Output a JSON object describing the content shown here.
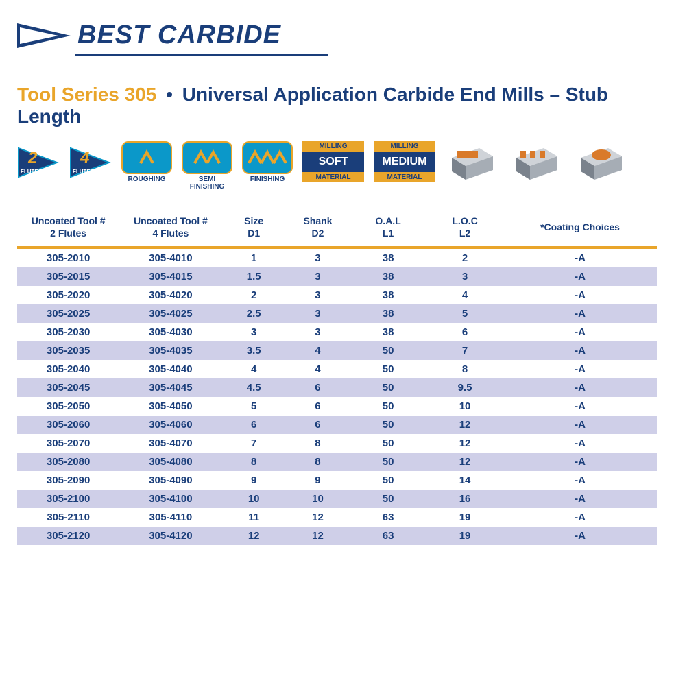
{
  "brand": "BEST CARBIDE",
  "brand_color": "#1a3e7a",
  "accent_color": "#e9a52a",
  "title": {
    "series": "Tool Series 305",
    "bullet": "•",
    "desc": "Universal Application Carbide End Mills – Stub Length"
  },
  "icons": {
    "flutes": [
      {
        "n": "2",
        "label": "FLUTES"
      },
      {
        "n": "4",
        "label": "FLUTES"
      }
    ],
    "ops": [
      {
        "teeth": 1,
        "label": "ROUGHING"
      },
      {
        "teeth": 2,
        "label": "SEMI\nFINISHING"
      },
      {
        "teeth": 3,
        "label": "FINISHING"
      }
    ],
    "materials": [
      {
        "top": "MILLING",
        "mid": "SOFT",
        "bot": "MATERIAL"
      },
      {
        "top": "MILLING",
        "mid": "MEDIUM",
        "bot": "MATERIAL"
      }
    ],
    "op3d_count": 3
  },
  "table": {
    "columns": [
      "Uncoated Tool #\n2 Flutes",
      "Uncoated Tool #\n4 Flutes",
      "Size\nD1",
      "Shank\nD2",
      "O.A.L\nL1",
      "L.O.C\nL2",
      "*Coating Choices"
    ],
    "header_rule_color": "#e9a52a",
    "row_alt_color": "#cfcfe8",
    "text_color": "#1a3e7a",
    "rows": [
      [
        "305-2010",
        "305-4010",
        "1",
        "3",
        "38",
        "2",
        "-A"
      ],
      [
        "305-2015",
        "305-4015",
        "1.5",
        "3",
        "38",
        "3",
        "-A"
      ],
      [
        "305-2020",
        "305-4020",
        "2",
        "3",
        "38",
        "4",
        "-A"
      ],
      [
        "305-2025",
        "305-4025",
        "2.5",
        "3",
        "38",
        "5",
        "-A"
      ],
      [
        "305-2030",
        "305-4030",
        "3",
        "3",
        "38",
        "6",
        "-A"
      ],
      [
        "305-2035",
        "305-4035",
        "3.5",
        "4",
        "50",
        "7",
        "-A"
      ],
      [
        "305-2040",
        "305-4040",
        "4",
        "4",
        "50",
        "8",
        "-A"
      ],
      [
        "305-2045",
        "305-4045",
        "4.5",
        "6",
        "50",
        "9.5",
        "-A"
      ],
      [
        "305-2050",
        "305-4050",
        "5",
        "6",
        "50",
        "10",
        "-A"
      ],
      [
        "305-2060",
        "305-4060",
        "6",
        "6",
        "50",
        "12",
        "-A"
      ],
      [
        "305-2070",
        "305-4070",
        "7",
        "8",
        "50",
        "12",
        "-A"
      ],
      [
        "305-2080",
        "305-4080",
        "8",
        "8",
        "50",
        "12",
        "-A"
      ],
      [
        "305-2090",
        "305-4090",
        "9",
        "9",
        "50",
        "14",
        "-A"
      ],
      [
        "305-2100",
        "305-4100",
        "10",
        "10",
        "50",
        "16",
        "-A"
      ],
      [
        "305-2110",
        "305-4110",
        "11",
        "12",
        "63",
        "19",
        "-A"
      ],
      [
        "305-2120",
        "305-4120",
        "12",
        "12",
        "63",
        "19",
        "-A"
      ]
    ]
  }
}
